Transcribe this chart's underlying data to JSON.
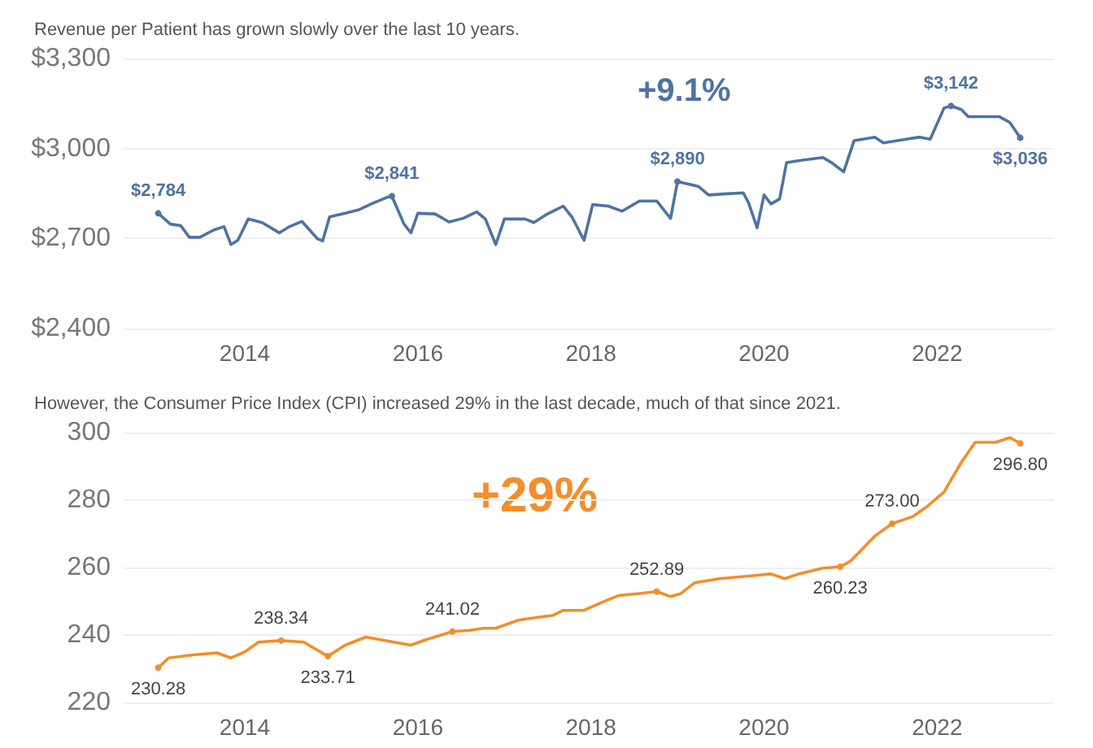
{
  "chart_data": [
    {
      "type": "line",
      "title": "Revenue per Patient has grown slowly over the last 10 years.",
      "annotations": [
        "+9.1%"
      ],
      "xlim": [
        2012.6,
        2023.35
      ],
      "xticks": [
        2014,
        2016,
        2018,
        2020,
        2022
      ],
      "ylim": [
        2400,
        3300
      ],
      "yticks": [
        {
          "value": 2400,
          "label": "$2,400"
        },
        {
          "value": 2700,
          "label": "$2,700"
        },
        {
          "value": 3000,
          "label": "$3,000"
        },
        {
          "value": 3300,
          "label": "$3,300"
        }
      ],
      "grid": "y",
      "marker": "none",
      "line_style": "solid",
      "series": [
        {
          "color": "#4e73a3",
          "x": [
            2013.0,
            2013.14,
            2013.26,
            2013.36,
            2013.48,
            2013.64,
            2013.76,
            2013.84,
            2013.92,
            2014.04,
            2014.2,
            2014.4,
            2014.52,
            2014.66,
            2014.84,
            2014.9,
            2014.98,
            2015.16,
            2015.32,
            2015.46,
            2015.64,
            2015.7,
            2015.84,
            2015.92,
            2016.0,
            2016.2,
            2016.36,
            2016.52,
            2016.68,
            2016.78,
            2016.9,
            2017.0,
            2017.24,
            2017.34,
            2017.48,
            2017.68,
            2017.78,
            2017.92,
            2018.02,
            2018.2,
            2018.36,
            2018.56,
            2018.76,
            2018.92,
            2019.0,
            2019.24,
            2019.36,
            2019.56,
            2019.76,
            2019.82,
            2019.92,
            2020.0,
            2020.08,
            2020.18,
            2020.26,
            2020.44,
            2020.68,
            2020.78,
            2020.92,
            2021.04,
            2021.28,
            2021.38,
            2021.64,
            2021.8,
            2021.92,
            2022.08,
            2022.16,
            2022.28,
            2022.36,
            2022.6,
            2022.72,
            2022.84,
            2022.96
          ],
          "values": [
            2784,
            2748,
            2743,
            2704,
            2704,
            2728,
            2740,
            2680,
            2694,
            2765,
            2753,
            2719,
            2740,
            2757,
            2699,
            2692,
            2772,
            2784,
            2796,
            2815,
            2837,
            2841,
            2748,
            2719,
            2784,
            2782,
            2755,
            2767,
            2789,
            2765,
            2680,
            2765,
            2765,
            2753,
            2779,
            2808,
            2772,
            2694,
            2813,
            2808,
            2791,
            2825,
            2825,
            2767,
            2890,
            2874,
            2845,
            2849,
            2852,
            2820,
            2736,
            2845,
            2815,
            2832,
            2953,
            2961,
            2970,
            2953,
            2922,
            3026,
            3038,
            3019,
            3031,
            3038,
            3031,
            3135,
            3142,
            3130,
            3106,
            3106,
            3106,
            3087,
            3036
          ],
          "value_labels": [
            "$2,784",
            null,
            null,
            null,
            null,
            null,
            null,
            null,
            null,
            null,
            null,
            null,
            null,
            null,
            null,
            null,
            null,
            null,
            null,
            null,
            null,
            "$2,841",
            null,
            null,
            null,
            null,
            null,
            null,
            null,
            null,
            null,
            null,
            null,
            null,
            null,
            null,
            null,
            null,
            null,
            null,
            null,
            null,
            null,
            null,
            "$2,890",
            null,
            null,
            null,
            null,
            null,
            null,
            null,
            null,
            null,
            null,
            null,
            null,
            null,
            null,
            null,
            null,
            null,
            null,
            null,
            null,
            null,
            "$3,142",
            null,
            null,
            null,
            null,
            null,
            "$3,036"
          ]
        }
      ]
    },
    {
      "type": "line",
      "title": "However, the Consumer Price Index (CPI) increased 29% in the last decade, much of that since 2021.",
      "annotations": [
        "+29%"
      ],
      "xlim": [
        2012.6,
        2023.35
      ],
      "xticks": [
        2014,
        2016,
        2018,
        2020,
        2022
      ],
      "ylim": [
        220,
        300
      ],
      "yticks": [
        220,
        240,
        260,
        280,
        300
      ],
      "grid": "y",
      "marker": "none",
      "line_style": "solid",
      "series": [
        {
          "color": "#f28e2b",
          "x": [
            2013.0,
            2013.12,
            2013.4,
            2013.68,
            2013.84,
            2014.0,
            2014.16,
            2014.42,
            2014.68,
            2014.96,
            2015.16,
            2015.4,
            2015.72,
            2015.92,
            2016.08,
            2016.4,
            2016.6,
            2016.76,
            2016.9,
            2017.16,
            2017.4,
            2017.56,
            2017.68,
            2017.92,
            2018.12,
            2018.32,
            2018.56,
            2018.76,
            2018.92,
            2019.04,
            2019.2,
            2019.48,
            2019.88,
            2020.08,
            2020.24,
            2020.4,
            2020.68,
            2020.88,
            2021.0,
            2021.28,
            2021.48,
            2021.72,
            2021.88,
            2022.08,
            2022.28,
            2022.44,
            2022.68,
            2022.84,
            2022.96
          ],
          "values": [
            230.28,
            233.2,
            234.1,
            234.7,
            233.2,
            235.0,
            237.9,
            238.34,
            237.9,
            233.71,
            237.0,
            239.4,
            237.9,
            237.0,
            238.5,
            241.02,
            241.4,
            242.0,
            242.0,
            244.4,
            245.3,
            245.8,
            247.3,
            247.3,
            249.6,
            251.7,
            252.3,
            252.89,
            251.4,
            252.3,
            255.5,
            256.7,
            257.6,
            258.1,
            256.7,
            258.1,
            259.8,
            260.23,
            261.9,
            269.3,
            273.0,
            275.1,
            278.0,
            282.4,
            291.2,
            297.1,
            297.1,
            298.5,
            296.8
          ],
          "value_labels": [
            "230.28",
            null,
            null,
            null,
            null,
            null,
            null,
            "238.34",
            null,
            "233.71",
            null,
            null,
            null,
            null,
            null,
            "241.02",
            null,
            null,
            null,
            null,
            null,
            null,
            null,
            null,
            null,
            null,
            null,
            "252.89",
            null,
            null,
            null,
            null,
            null,
            null,
            null,
            null,
            null,
            "260.23",
            null,
            null,
            "273.00",
            null,
            null,
            null,
            null,
            null,
            null,
            null,
            "296.80"
          ]
        }
      ]
    }
  ]
}
